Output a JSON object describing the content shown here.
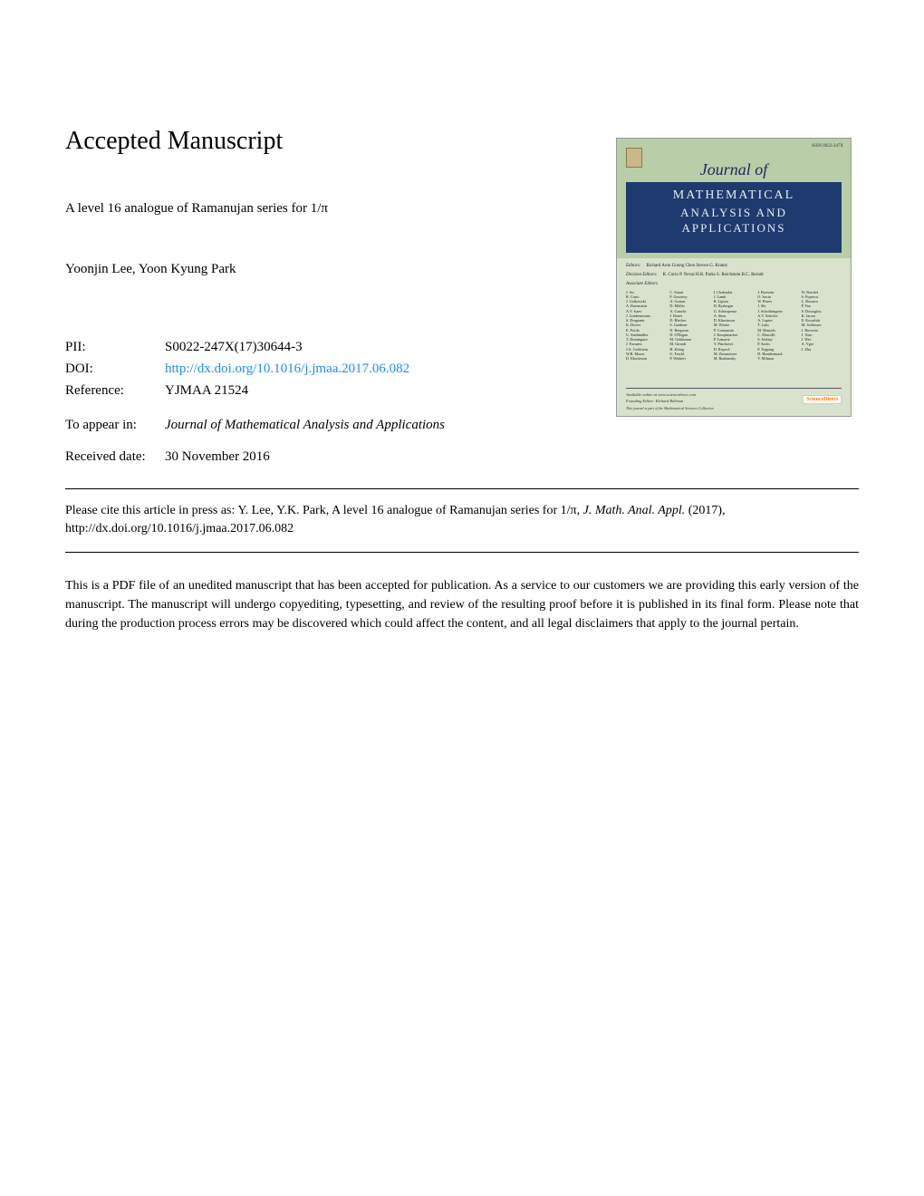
{
  "heading": "Accepted Manuscript",
  "article_title_prefix": "A level 16 analogue of Ramanujan series for ",
  "article_title_math": "1/π",
  "authors": "Yoonjin Lee, Yoon Kyung Park",
  "meta": {
    "pii_label": "PII:",
    "pii_value": "S0022-247X(17)30644-3",
    "doi_label": "DOI:",
    "doi_value": "http://dx.doi.org/10.1016/j.jmaa.2017.06.082",
    "ref_label": "Reference:",
    "ref_value": "YJMAA 21524"
  },
  "appear": {
    "label": "To appear in:",
    "value": "Journal of Mathematical Analysis and Applications"
  },
  "received": {
    "label": "Received date:",
    "value": "30 November 2016"
  },
  "citation": {
    "prefix": "Please cite this article in press as: Y. Lee, Y.K. Park, A level 16 analogue of Ramanujan series for ",
    "math": "1/π",
    "mid": ", ",
    "journal": "J. Math. Anal. Appl.",
    "suffix": " (2017), http://dx.doi.org/10.1016/j.jmaa.2017.06.082"
  },
  "disclaimer": "This is a PDF file of an unedited manuscript that has been accepted for publication. As a service to our customers we are providing this early version of the manuscript. The manuscript will undergo copyediting, typesetting, and review of the resulting proof before it is published in its final form. Please note that during the production process errors may be discovered which could affect the content, and all legal disclaimers that apply to the journal pertain.",
  "cover": {
    "issn": "ISSN 0022-247X",
    "journal_of": "Journal of",
    "title_l1": "MATHEMATICAL",
    "title_l2": "ANALYSIS AND",
    "title_l3": "APPLICATIONS",
    "editors_label": "Editors:",
    "editors_names": "Richard Aron   Goong Chen   Steven G. Krantz",
    "div_label": "Division Editors:",
    "div_names": "R. Curto   P. Nevai   H.R. Parks   S. Reichstein   B.C. Berndt",
    "assoc_label": "Associate Editors",
    "cols": [
      "J. An\nR. Curto\nJ. Galkowski\nA. Baernstein\nA.V. Isaev\nJ. Lindenstrauss\nS. Dragomir\nK. Driver\nE. Priola\nU. Stadtmüller\nT. Domínguez\nJ. Fornæss\nJ.A. Goldstein\nW.B. Moors\nD. Khavinson",
      "C. Stuart\nF. Gesztesy\nA. Granas\nD. Müller\nA. Cianchi\nJ. Bonet\nD. Blecher\nS. Gardiner\nN. Bergeron\nD. O'Regan\nM. Gekhtman\nM. Girardi\nH. König\nG. Teschl\nP. Winkert",
      "I. Chalendar\nJ. Lamb\nR. Lipton\nD. Ryabogin\nG. Schimperna\nA. Sims\nD. Khavinson\nM. Winter\nP. Constantin\nJ. Knopfmacher\nP. Lemarie\nY. Pinchover\nD. Repovš\nM. Zinsmeister\nM. Ruzhansky",
      "J. Borwein\nO. Savin\nW. Peters\nJ. Shi\nJ. Schoißengeier\nA.V. Sobolev\nA. Laptev\nT. Luks\nM. Mastyło\nC. Marcolli\nS. Serfaty\nP. Sacks\nP. Topping\nD. Hundertmark\nV. Milman",
      "W. Reichel\nS. Popescu\nL. Rosasco\nP. Yao\nS. Dostoglou\nK. Jarosz\nE. Kowalski\nM. Schlosser\nJ. Borwein\nJ. Xiao\nJ. Wei\nA. Yger\nJ. Zhu"
    ],
    "footer_left_1": "Available online at www.sciencedirect.com",
    "footer_left_2": "Founding Editor: Richard Bellman",
    "footer_bottom": "This journal is part of the Mathematical Sciences Collection",
    "sd": "ScienceDirect"
  }
}
